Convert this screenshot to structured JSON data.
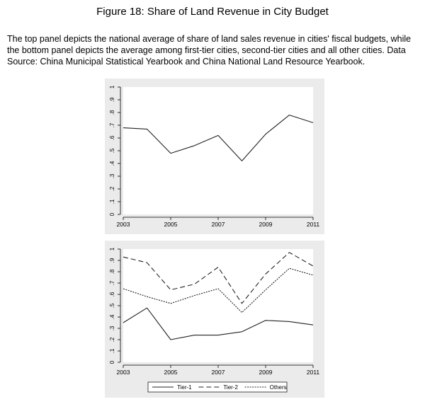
{
  "figure": {
    "title": "Figure 18: Share of Land Revenue in City Budget",
    "caption": "The top panel depicts the national average of share of land sales revenue in cities' fiscal budgets, while the bottom panel depicts the average among first-tier cities, second-tier cities and all other cities. Data Source: China Municipal Statistical Yearbook and China National Land Resource Yearbook."
  },
  "chart_data": [
    {
      "type": "line",
      "x": [
        2003,
        2004,
        2005,
        2006,
        2007,
        2008,
        2009,
        2010,
        2011
      ],
      "series": [
        {
          "values": [
            0.68,
            0.67,
            0.48,
            0.54,
            0.62,
            0.42,
            0.63,
            0.78,
            0.72
          ],
          "style": "solid"
        }
      ],
      "xlim": [
        2003,
        2011
      ],
      "ylim": [
        0,
        1
      ],
      "xticks": [
        "2003",
        "2005",
        "2007",
        "2009",
        "2011"
      ],
      "yticks": [
        "0",
        ".1",
        ".2",
        ".3",
        ".4",
        ".5",
        ".6",
        ".7",
        ".8",
        ".9",
        "1"
      ],
      "title": "",
      "xlabel": "",
      "ylabel": "",
      "grid": false,
      "background": "#ebebeb"
    },
    {
      "type": "line",
      "x": [
        2003,
        2004,
        2005,
        2006,
        2007,
        2008,
        2009,
        2010,
        2011
      ],
      "series": [
        {
          "name": "Tier-1",
          "style": "solid",
          "values": [
            0.35,
            0.48,
            0.2,
            0.24,
            0.24,
            0.27,
            0.37,
            0.36,
            0.33
          ]
        },
        {
          "name": "Tier-2",
          "style": "dashed",
          "values": [
            0.93,
            0.88,
            0.64,
            0.69,
            0.84,
            0.52,
            0.78,
            0.97,
            0.85
          ]
        },
        {
          "name": "Others",
          "style": "dotted",
          "values": [
            0.65,
            0.58,
            0.52,
            0.59,
            0.65,
            0.44,
            0.64,
            0.83,
            0.77
          ]
        }
      ],
      "xlim": [
        2003,
        2011
      ],
      "ylim": [
        0,
        1
      ],
      "xticks": [
        "2003",
        "2005",
        "2007",
        "2009",
        "2011"
      ],
      "yticks": [
        "0",
        ".1",
        ".2",
        ".3",
        ".4",
        ".5",
        ".6",
        ".7",
        ".8",
        ".9",
        "1"
      ],
      "title": "",
      "xlabel": "",
      "ylabel": "",
      "grid": false,
      "legend": "bottom",
      "background": "#ebebeb"
    }
  ]
}
